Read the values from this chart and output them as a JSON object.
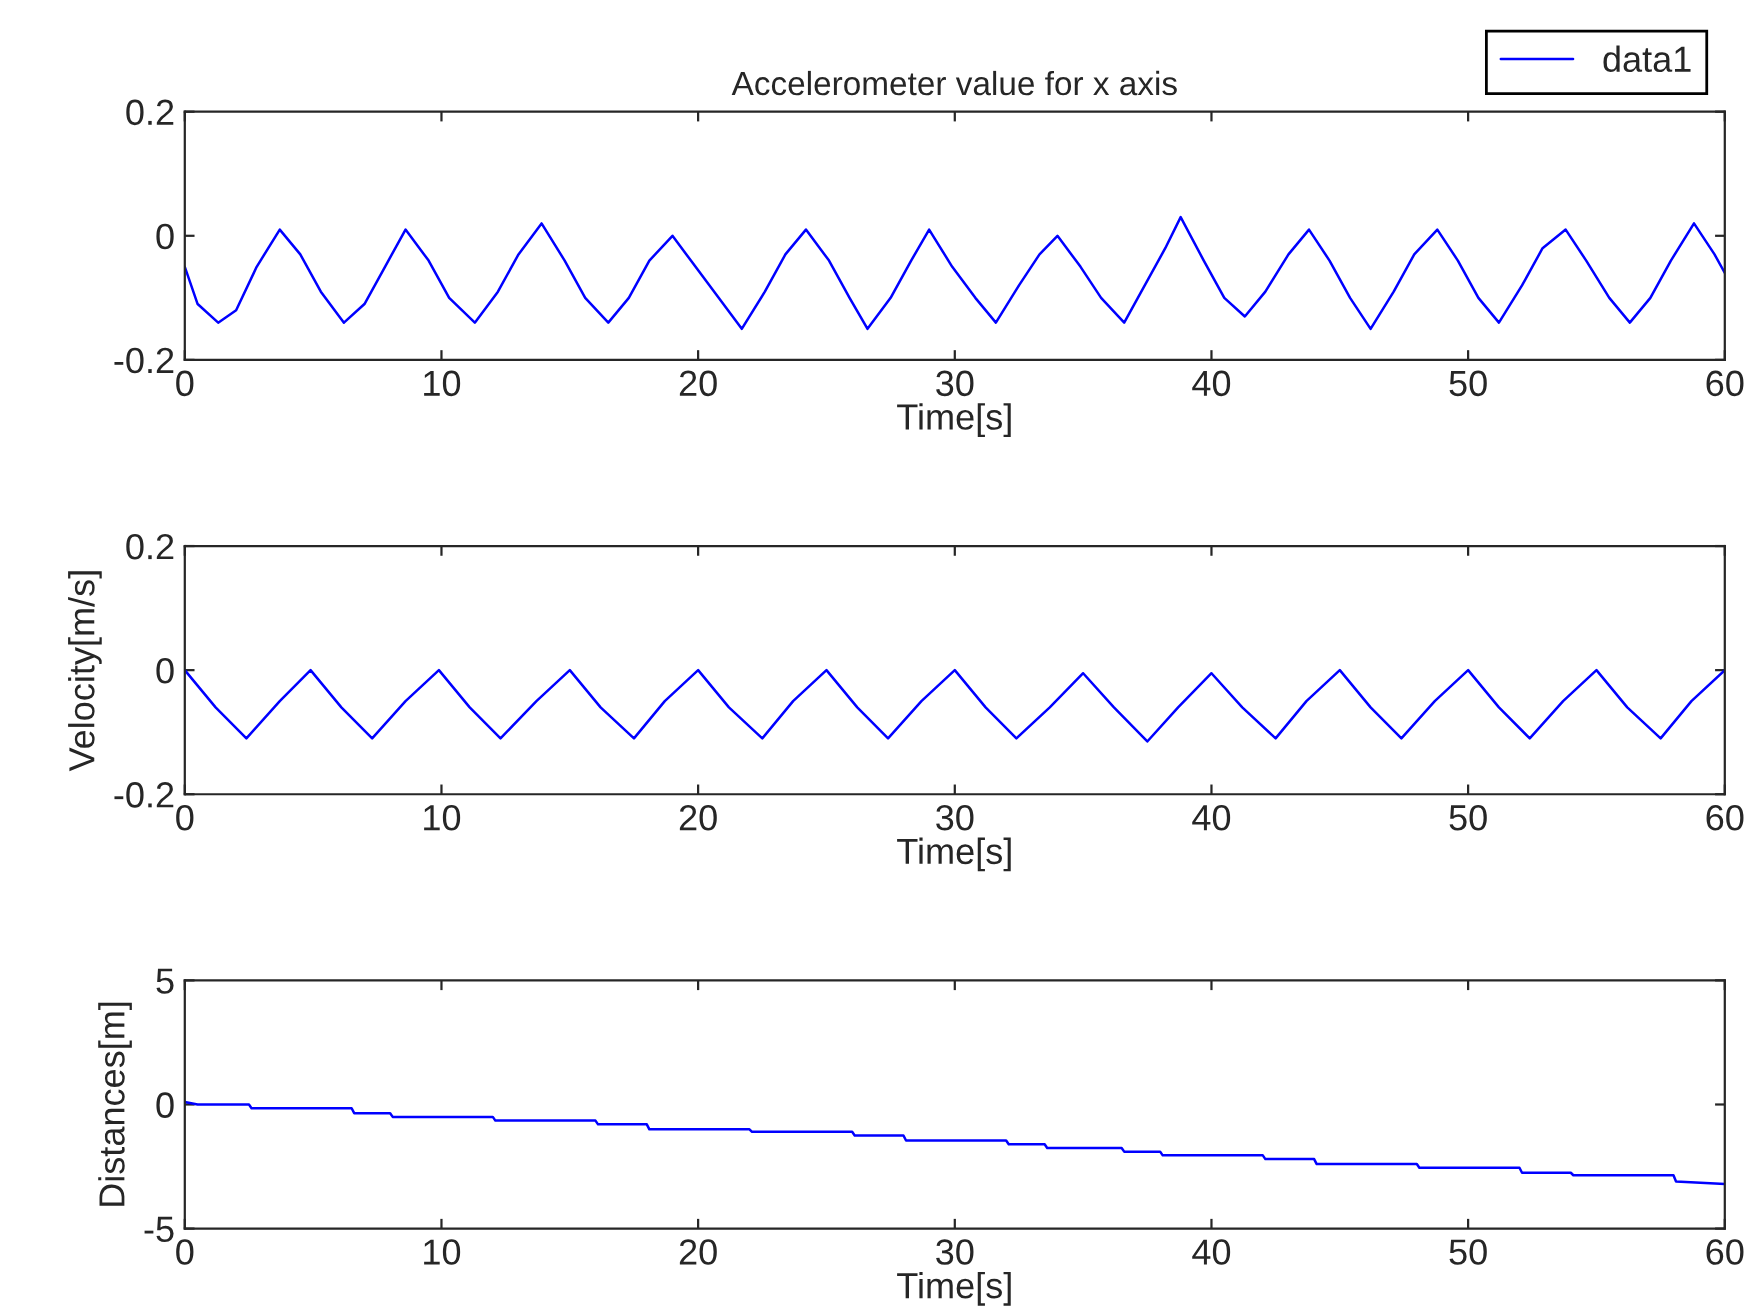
{
  "chart_data": [
    {
      "type": "line",
      "title": "Accelerometer value for x axis",
      "xlabel": "Time[s]",
      "xlim": [
        0,
        60
      ],
      "xticks": [
        0,
        10,
        20,
        30,
        40,
        50,
        60
      ],
      "ylim": [
        -0.2,
        0.2
      ],
      "yticks": [
        -0.2,
        0,
        0.2
      ],
      "legend": "top right",
      "grid": false,
      "series": [
        {
          "name": "data1",
          "color": "#0000ff",
          "x": [
            0,
            0.5,
            1.3,
            2,
            2.8,
            3.7,
            4.5,
            5.3,
            6.2,
            7,
            7.8,
            8.6,
            9.5,
            10.3,
            11.3,
            12.2,
            13,
            13.9,
            14.8,
            15.6,
            16.5,
            17.3,
            18.1,
            19,
            19.9,
            20.8,
            21.7,
            22.6,
            23.4,
            24.2,
            25.1,
            25.9,
            26.6,
            27.5,
            28.3,
            29,
            29.9,
            30.8,
            31.6,
            32.5,
            33.3,
            34,
            34.9,
            35.7,
            36.6,
            37.4,
            38.2,
            38.8,
            39.7,
            40.5,
            41.3,
            42.1,
            43,
            43.8,
            44.6,
            45.4,
            46.2,
            47.1,
            47.9,
            48.8,
            49.6,
            50.4,
            51.2,
            52.1,
            52.9,
            53.8,
            54.6,
            55.5,
            56.3,
            57.1,
            57.9,
            58.8,
            59.6,
            60
          ],
          "values": [
            -0.05,
            -0.11,
            -0.14,
            -0.12,
            -0.05,
            0.01,
            -0.03,
            -0.09,
            -0.14,
            -0.11,
            -0.05,
            0.01,
            -0.04,
            -0.1,
            -0.14,
            -0.09,
            -0.03,
            0.02,
            -0.04,
            -0.1,
            -0.14,
            -0.1,
            -0.04,
            0.0,
            -0.05,
            -0.1,
            -0.15,
            -0.09,
            -0.03,
            0.01,
            -0.04,
            -0.1,
            -0.15,
            -0.1,
            -0.04,
            0.01,
            -0.05,
            -0.1,
            -0.14,
            -0.08,
            -0.03,
            0.0,
            -0.05,
            -0.1,
            -0.14,
            -0.08,
            -0.02,
            0.03,
            -0.04,
            -0.1,
            -0.13,
            -0.09,
            -0.03,
            0.01,
            -0.04,
            -0.1,
            -0.15,
            -0.09,
            -0.03,
            0.01,
            -0.04,
            -0.1,
            -0.14,
            -0.08,
            -0.02,
            0.01,
            -0.04,
            -0.1,
            -0.14,
            -0.1,
            -0.04,
            0.02,
            -0.03,
            -0.06
          ]
        }
      ]
    },
    {
      "type": "line",
      "xlabel": "Time[s]",
      "ylabel": "Velocity[m/s]",
      "xlim": [
        0,
        60
      ],
      "xticks": [
        0,
        10,
        20,
        30,
        40,
        50,
        60
      ],
      "ylim": [
        -0.2,
        0.2
      ],
      "yticks": [
        -0.2,
        0,
        0.2
      ],
      "grid": false,
      "series": [
        {
          "color": "#0000ff",
          "x": [
            0,
            1.2,
            2.4,
            3.7,
            4.9,
            6.1,
            7.3,
            8.6,
            9.9,
            11.1,
            12.3,
            13.7,
            15,
            16.2,
            17.5,
            18.7,
            20,
            21.2,
            22.5,
            23.7,
            25,
            26.2,
            27.4,
            28.7,
            30,
            31.2,
            32.4,
            33.7,
            35,
            36.2,
            37.5,
            38.7,
            40,
            41.2,
            42.5,
            43.7,
            45,
            46.2,
            47.4,
            48.7,
            50,
            51.2,
            52.4,
            53.7,
            55,
            56.2,
            57.5,
            58.7,
            60
          ],
          "values": [
            0,
            -0.06,
            -0.11,
            -0.05,
            0,
            -0.06,
            -0.11,
            -0.05,
            0,
            -0.06,
            -0.11,
            -0.05,
            0,
            -0.06,
            -0.11,
            -0.05,
            0,
            -0.06,
            -0.11,
            -0.05,
            0,
            -0.06,
            -0.11,
            -0.05,
            0,
            -0.06,
            -0.11,
            -0.06,
            -0.005,
            -0.06,
            -0.115,
            -0.06,
            -0.005,
            -0.06,
            -0.11,
            -0.05,
            0,
            -0.06,
            -0.11,
            -0.05,
            0,
            -0.06,
            -0.11,
            -0.05,
            0,
            -0.06,
            -0.11,
            -0.05,
            0
          ]
        }
      ]
    },
    {
      "type": "line",
      "xlabel": "Time[s]",
      "ylabel": "Distances[m]",
      "xlim": [
        0,
        60
      ],
      "xticks": [
        0,
        10,
        20,
        30,
        40,
        50,
        60
      ],
      "ylim": [
        -5,
        5
      ],
      "yticks": [
        -5,
        0,
        5
      ],
      "grid": false,
      "series": [
        {
          "color": "#0000ff",
          "x": [
            0,
            0.5,
            2.5,
            2.6,
            6.5,
            6.6,
            8,
            8.1,
            12,
            12.1,
            16,
            16.1,
            18,
            18.1,
            22,
            22.1,
            26,
            26.1,
            28,
            28.1,
            32,
            32.1,
            33.5,
            33.6,
            36.5,
            36.6,
            38,
            38.1,
            42,
            42.1,
            44,
            44.1,
            48,
            48.1,
            52,
            52.1,
            54,
            54.1,
            58,
            58.1,
            60
          ],
          "values": [
            0.1,
            0,
            0,
            -0.15,
            -0.15,
            -0.35,
            -0.35,
            -0.5,
            -0.5,
            -0.65,
            -0.65,
            -0.8,
            -0.8,
            -1.0,
            -1.0,
            -1.1,
            -1.1,
            -1.25,
            -1.25,
            -1.45,
            -1.45,
            -1.6,
            -1.6,
            -1.75,
            -1.75,
            -1.9,
            -1.9,
            -2.05,
            -2.05,
            -2.2,
            -2.2,
            -2.4,
            -2.4,
            -2.55,
            -2.55,
            -2.75,
            -2.75,
            -2.85,
            -2.85,
            -3.1,
            -3.2
          ]
        }
      ]
    }
  ]
}
